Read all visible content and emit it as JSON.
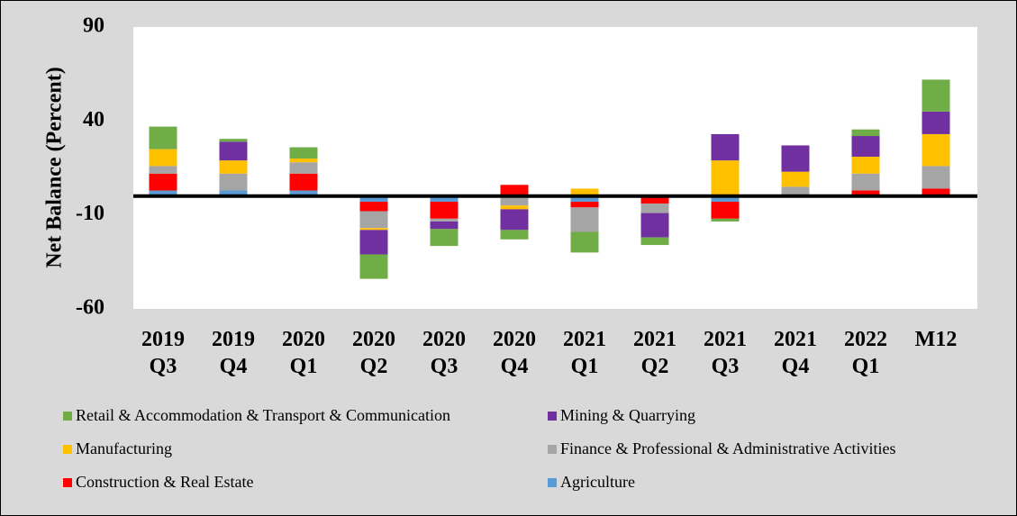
{
  "chart_data": {
    "type": "bar",
    "stacked": true,
    "y_label": "Net Balance (Percent)",
    "categories": [
      "2019 Q3",
      "2019 Q4",
      "2020 Q1",
      "2020 Q2",
      "2020 Q3",
      "2020 Q4",
      "2021 Q1",
      "2021 Q2",
      "2021 Q3",
      "2021 Q4",
      "2022 Q1",
      "M12"
    ],
    "series": [
      {
        "name": "Retail & Accommodation & Transport & Communication",
        "color": "#70ad47",
        "values": [
          12,
          1.5,
          6,
          -13,
          -9,
          -5,
          -11,
          -4,
          -1.5,
          0,
          3.5,
          17
        ]
      },
      {
        "name": "Mining & Quarrying",
        "color": "#7030a0",
        "values": [
          0,
          10,
          0,
          -13,
          -4,
          -11,
          0,
          -13,
          14,
          14,
          11,
          12
        ]
      },
      {
        "name": "Manufacturing",
        "color": "#ffc000",
        "values": [
          9,
          7,
          2,
          -1,
          0,
          -2,
          4,
          0,
          19,
          8,
          9,
          17
        ]
      },
      {
        "name": "Finance & Professional & Administrative Activities",
        "color": "#a5a5a5",
        "values": [
          4,
          9,
          6,
          -9,
          -1.5,
          -5,
          -13,
          -5,
          0,
          5,
          9,
          12
        ]
      },
      {
        "name": "Construction & Real Estate",
        "color": "#ff0000",
        "values": [
          9,
          0,
          9,
          -5,
          -9,
          6,
          -3,
          -4,
          -9,
          0,
          3,
          4
        ]
      },
      {
        "name": "Agriculture",
        "color": "#5b9bd5",
        "values": [
          3,
          3,
          3,
          -3,
          -3,
          0,
          -3,
          0,
          -3,
          0,
          0,
          0
        ]
      }
    ],
    "ylim": [
      -60,
      90
    ],
    "yticks": [
      -60,
      -10,
      40,
      90
    ],
    "grid": false
  }
}
